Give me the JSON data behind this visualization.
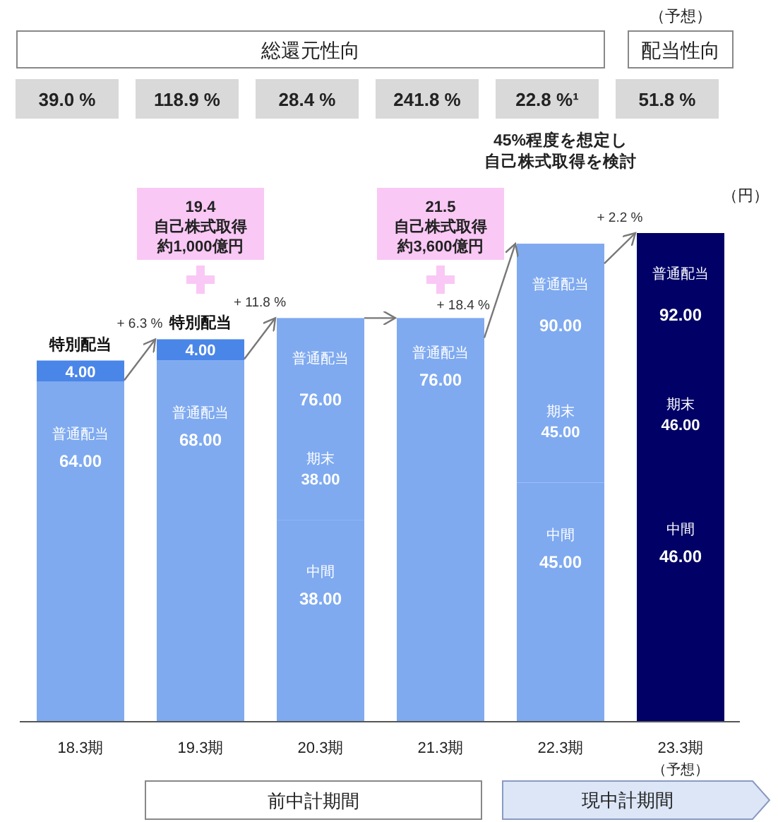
{
  "chart_data": {
    "type": "bar",
    "stacked": true,
    "categories": [
      "18.3期",
      "19.3期",
      "20.3期",
      "21.3期",
      "22.3期",
      "23.3期"
    ],
    "ylabel": "（円）",
    "totals": [
      null,
      null,
      "76.00",
      null,
      "90.00",
      "92.00"
    ],
    "series": [
      {
        "name": "普通配当",
        "colors": [
          "#7faaf0",
          "#7faaf0",
          null,
          "#7faaf0",
          null,
          null
        ],
        "values": [
          64,
          68,
          null,
          76,
          null,
          null
        ],
        "value_labels": [
          "64.00",
          "68.00",
          null,
          "76.00",
          null,
          null
        ]
      },
      {
        "name": "中間",
        "colors": [
          null,
          null,
          "#7faaf0",
          null,
          "#7faaf0",
          "#000066"
        ],
        "values": [
          null,
          null,
          38,
          null,
          45,
          46
        ],
        "value_labels": [
          null,
          null,
          "38.00",
          null,
          "45.00",
          "46.00"
        ]
      },
      {
        "name": "期末",
        "colors": [
          null,
          null,
          "#7faaf0",
          null,
          "#7faaf0",
          "#000066"
        ],
        "values": [
          null,
          null,
          38,
          null,
          45,
          46
        ],
        "value_labels": [
          null,
          null,
          "38.00",
          null,
          "45.00",
          "46.00"
        ]
      },
      {
        "name": "特別配当",
        "color": "#4a86e8",
        "values": [
          4,
          4,
          null,
          null,
          null,
          null
        ],
        "value_labels": [
          "4.00",
          "4.00",
          null,
          null,
          null,
          null
        ]
      }
    ],
    "annotations": [
      "総還元性向",
      "（予想）",
      "配当性向",
      "39.0 %",
      "118.9 %",
      "28.4 %",
      "241.8 %",
      "22.8 %¹",
      "51.8 %",
      "45%程度を想定し",
      "自己株式取得を検討",
      "19.4",
      "自己株式取得",
      "約1,000億円",
      "21.5",
      "自己株式取得",
      "約3,600億円",
      "前中計期間",
      "現中計期間",
      "（予想）",
      "+ 6.3 %",
      "+ 11.8 %",
      "+ 18.4 %",
      "+ 2.2 %"
    ]
  }
}
